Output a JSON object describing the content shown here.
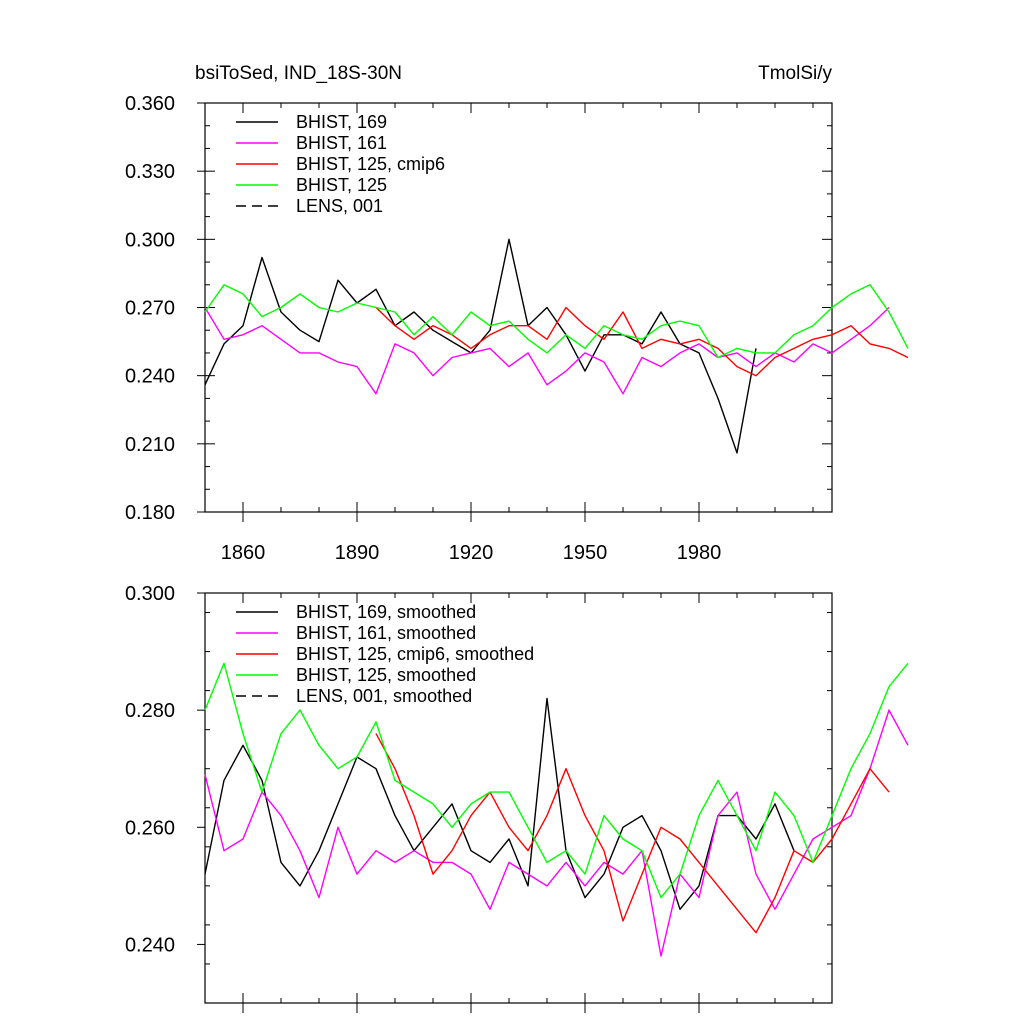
{
  "colors": {
    "BHIST_169": "#000000",
    "BHIST_161": "#ff00ff",
    "BHIST_125_cmip6": "#ff0000",
    "BHIST_125": "#00ff00",
    "LENS_001": "#000000"
  },
  "chart_data": [
    {
      "type": "line",
      "title_left": "bsiToSed, IND_18S-30N",
      "title_right": "TmolSi/y",
      "xlim": [
        1850,
        2015
      ],
      "ylim": [
        0.18,
        0.36
      ],
      "x_ticks": [
        1860,
        1890,
        1920,
        1950,
        1980
      ],
      "x_tick_labels": [
        "1860",
        "1890",
        "1920",
        "1950",
        "1980"
      ],
      "y_ticks": [
        0.18,
        0.21,
        0.24,
        0.27,
        0.3,
        0.33,
        0.36
      ],
      "y_tick_labels": [
        "0.180",
        "0.210",
        "0.240",
        "0.270",
        "0.300",
        "0.330",
        "0.360"
      ],
      "legend": [
        "BHIST, 169",
        "BHIST, 161",
        "BHIST, 125, cmip6",
        "BHIST, 125",
        "LENS, 001"
      ],
      "series": [
        {
          "name": "BHIST, 169",
          "color_key": "BHIST_169",
          "dash": false,
          "x_start": 1850,
          "x_step": 5,
          "values": [
            0.236,
            0.254,
            0.262,
            0.292,
            0.268,
            0.26,
            0.255,
            0.282,
            0.272,
            0.278,
            0.262,
            0.268,
            0.26,
            0.255,
            0.25,
            0.26,
            0.3,
            0.262,
            0.27,
            0.258,
            0.242,
            0.258,
            0.258,
            0.254,
            0.268,
            0.254,
            0.25,
            0.23,
            0.206,
            0.252
          ]
        },
        {
          "name": "BHIST, 161",
          "color_key": "BHIST_161",
          "dash": false,
          "x_start": 1850,
          "x_step": 5,
          "values": [
            0.27,
            0.256,
            0.258,
            0.262,
            0.256,
            0.25,
            0.25,
            0.246,
            0.244,
            0.232,
            0.254,
            0.25,
            0.24,
            0.248,
            0.25,
            0.252,
            0.244,
            0.25,
            0.236,
            0.242,
            0.25,
            0.246,
            0.232,
            0.248,
            0.244,
            0.25,
            0.254,
            0.248,
            0.25,
            0.244,
            0.25,
            0.246,
            0.254,
            0.25,
            0.256,
            0.262,
            0.27
          ]
        },
        {
          "name": "BHIST, 125, cmip6",
          "color_key": "BHIST_125_cmip6",
          "dash": false,
          "x_start": 1895,
          "x_step": 5,
          "values": [
            0.27,
            0.262,
            0.256,
            0.262,
            0.258,
            0.252,
            0.258,
            0.262,
            0.262,
            0.256,
            0.27,
            0.262,
            0.256,
            0.268,
            0.252,
            0.256,
            0.254,
            0.256,
            0.252,
            0.244,
            0.24,
            0.248,
            0.252,
            0.256,
            0.258,
            0.262,
            0.254,
            0.252,
            0.248
          ]
        },
        {
          "name": "BHIST, 125",
          "color_key": "BHIST_125",
          "dash": false,
          "x_start": 1850,
          "x_step": 5,
          "values": [
            0.268,
            0.28,
            0.276,
            0.266,
            0.27,
            0.276,
            0.27,
            0.268,
            0.272,
            0.27,
            0.268,
            0.258,
            0.266,
            0.258,
            0.268,
            0.262,
            0.264,
            0.256,
            0.25,
            0.258,
            0.252,
            0.262,
            0.258,
            0.256,
            0.262,
            0.264,
            0.262,
            0.248,
            0.252,
            0.25,
            0.25,
            0.258,
            0.262,
            0.27,
            0.276,
            0.28,
            0.268,
            0.252
          ]
        }
      ]
    },
    {
      "type": "line",
      "xlim": [
        1850,
        2015
      ],
      "ylim": [
        0.23,
        0.3
      ],
      "x_ticks": [
        1860,
        1890,
        1920,
        1950,
        1980
      ],
      "y_ticks": [
        0.24,
        0.26,
        0.28,
        0.3
      ],
      "y_tick_labels": [
        "0.240",
        "0.260",
        "0.280",
        "0.300"
      ],
      "legend": [
        "BHIST, 169, smoothed",
        "BHIST, 161, smoothed",
        "BHIST, 125, cmip6, smoothed",
        "BHIST, 125, smoothed",
        "LENS, 001, smoothed"
      ],
      "series": [
        {
          "name": "BHIST, 169, smoothed",
          "color_key": "BHIST_169",
          "dash": false,
          "x_start": 1850,
          "x_step": 5,
          "values": [
            0.252,
            0.268,
            0.274,
            0.268,
            0.254,
            0.25,
            0.256,
            0.264,
            0.272,
            0.27,
            0.262,
            0.256,
            0.26,
            0.264,
            0.256,
            0.254,
            0.258,
            0.25,
            0.282,
            0.256,
            0.248,
            0.252,
            0.26,
            0.262,
            0.256,
            0.246,
            0.25,
            0.262,
            0.262,
            0.258,
            0.264,
            0.256
          ]
        },
        {
          "name": "BHIST, 161, smoothed",
          "color_key": "BHIST_161",
          "dash": false,
          "x_start": 1850,
          "x_step": 5,
          "values": [
            0.269,
            0.256,
            0.258,
            0.266,
            0.262,
            0.256,
            0.248,
            0.26,
            0.252,
            0.256,
            0.254,
            0.256,
            0.254,
            0.254,
            0.252,
            0.246,
            0.254,
            0.252,
            0.25,
            0.254,
            0.25,
            0.254,
            0.252,
            0.256,
            0.238,
            0.252,
            0.248,
            0.262,
            0.266,
            0.252,
            0.246,
            0.252,
            0.258,
            0.26,
            0.262,
            0.27,
            0.28,
            0.274
          ]
        },
        {
          "name": "BHIST, 125, cmip6, smoothed",
          "color_key": "BHIST_125_cmip6",
          "dash": false,
          "x_start": 1895,
          "x_step": 5,
          "values": [
            0.276,
            0.27,
            0.262,
            0.252,
            0.256,
            0.262,
            0.266,
            0.26,
            0.256,
            0.262,
            0.27,
            0.262,
            0.256,
            0.244,
            0.252,
            0.26,
            0.258,
            0.254,
            0.25,
            0.246,
            0.242,
            0.248,
            0.256,
            0.254,
            0.258,
            0.264,
            0.27,
            0.266
          ]
        },
        {
          "name": "BHIST, 125, smoothed",
          "color_key": "BHIST_125",
          "dash": false,
          "x_start": 1850,
          "x_step": 5,
          "values": [
            0.28,
            0.288,
            0.276,
            0.266,
            0.276,
            0.28,
            0.274,
            0.27,
            0.272,
            0.278,
            0.268,
            0.266,
            0.264,
            0.26,
            0.264,
            0.266,
            0.266,
            0.26,
            0.254,
            0.256,
            0.252,
            0.262,
            0.258,
            0.256,
            0.248,
            0.252,
            0.262,
            0.268,
            0.262,
            0.256,
            0.266,
            0.262,
            0.254,
            0.262,
            0.27,
            0.276,
            0.284,
            0.288
          ]
        }
      ]
    }
  ]
}
